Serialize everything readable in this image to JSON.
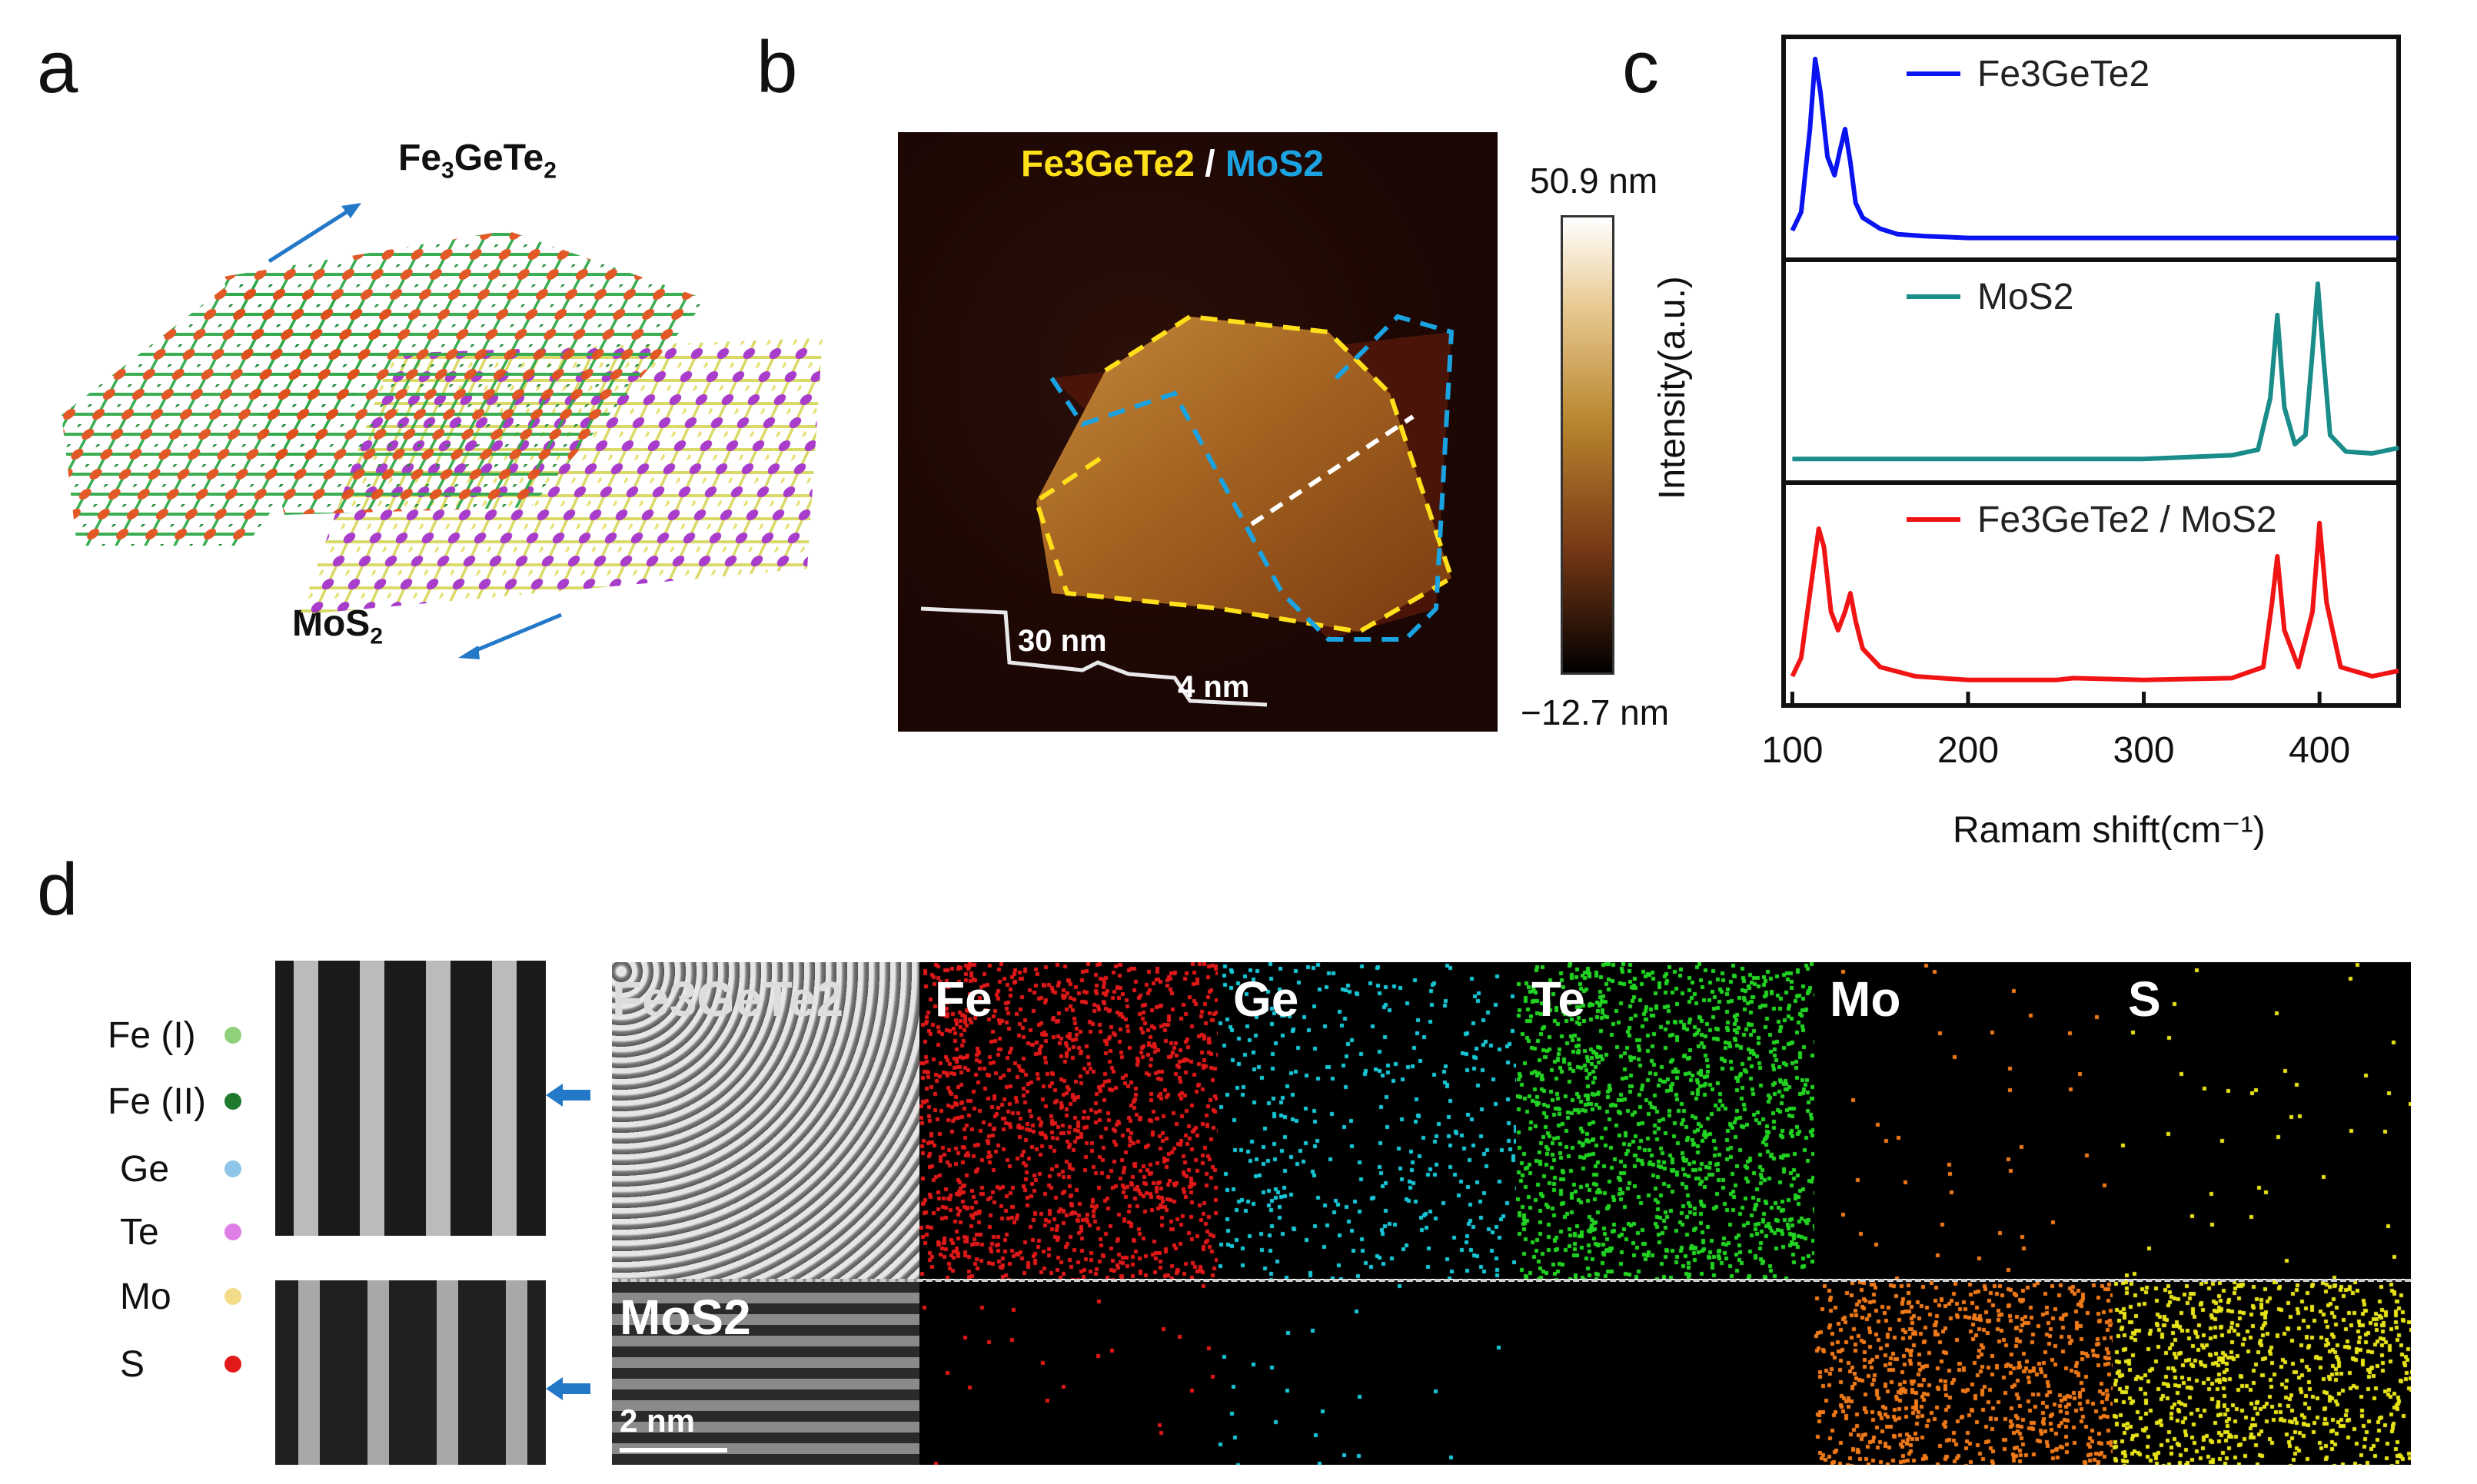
{
  "panels": {
    "a": {
      "letter": "a",
      "top_layer": "Fe",
      "top_layer_sub": "3",
      "top_layer_mid": "GeTe",
      "top_layer_sub2": "2",
      "bottom_layer": "MoS",
      "bottom_layer_sub": "2"
    },
    "b": {
      "letter": "b",
      "title_fgt": "Fe3GeTe2",
      "title_sep": " / ",
      "title_mos": "MoS2",
      "scale_max": "50.9 nm",
      "scale_min": "−12.7 nm",
      "step_high": "30 nm",
      "step_low": "4 nm",
      "colors": {
        "fgt_outline": "#ffe01a",
        "mos_outline": "#1aa3e0"
      }
    },
    "c": {
      "letter": "c",
      "ylabel": "Intensity(a.u.)",
      "xlabel": "Ramam shift(cm⁻¹)"
    },
    "d": {
      "letter": "d",
      "legend": [
        {
          "label": "Fe (I)",
          "color": "#8fd07a"
        },
        {
          "label": "Fe (II)",
          "color": "#1f7a2e"
        },
        {
          "label": "Ge",
          "color": "#8ec5e8"
        },
        {
          "label": "Te",
          "color": "#e07ee8"
        },
        {
          "label": "Mo",
          "color": "#f2dc8a"
        },
        {
          "label": "S",
          "color": "#e31a1a"
        }
      ],
      "fgt_label": "Fe3GeTe2",
      "mos_label": "MoS2",
      "scalebar": "2 nm",
      "maps": [
        {
          "element": "Fe",
          "color": "#e01818",
          "top_density": "high",
          "bottom_density": "low"
        },
        {
          "element": "Ge",
          "color": "#18c8d8",
          "top_density": "mid",
          "bottom_density": "low"
        },
        {
          "element": "Te",
          "color": "#22d422",
          "top_density": "high",
          "bottom_density": "none"
        },
        {
          "element": "Mo",
          "color": "#f07a18",
          "top_density": "low",
          "bottom_density": "high"
        },
        {
          "element": "S",
          "color": "#e8e418",
          "top_density": "low",
          "bottom_density": "high"
        }
      ]
    }
  },
  "chart_data": [
    {
      "type": "line",
      "title": "Fe3GeTe2",
      "color": "#0a14f0",
      "x": [
        100,
        105,
        110,
        113,
        116,
        120,
        124,
        127,
        130,
        133,
        136,
        140,
        150,
        160,
        175,
        200,
        250,
        300,
        350,
        400,
        445
      ],
      "y": [
        0.05,
        0.15,
        0.6,
        0.98,
        0.8,
        0.45,
        0.35,
        0.48,
        0.6,
        0.42,
        0.2,
        0.12,
        0.06,
        0.03,
        0.02,
        0.01,
        0.01,
        0.01,
        0.01,
        0.01,
        0.01
      ]
    },
    {
      "type": "line",
      "title": "MoS2",
      "color": "#1a8c8a",
      "x": [
        100,
        200,
        300,
        350,
        365,
        372,
        376,
        380,
        386,
        392,
        396,
        399,
        402,
        406,
        415,
        430,
        445
      ],
      "y": [
        0.02,
        0.02,
        0.02,
        0.04,
        0.07,
        0.35,
        0.8,
        0.3,
        0.1,
        0.15,
        0.6,
        0.97,
        0.6,
        0.15,
        0.06,
        0.05,
        0.08
      ]
    },
    {
      "type": "line",
      "title": "Fe3GeTe2 / MoS2",
      "color": "#f01414",
      "x": [
        100,
        105,
        110,
        115,
        118,
        122,
        126,
        130,
        133,
        136,
        140,
        150,
        170,
        200,
        250,
        260,
        300,
        350,
        368,
        373,
        376,
        380,
        388,
        396,
        400,
        404,
        412,
        430,
        445
      ],
      "y": [
        0.05,
        0.15,
        0.5,
        0.85,
        0.75,
        0.4,
        0.3,
        0.4,
        0.5,
        0.35,
        0.2,
        0.1,
        0.05,
        0.03,
        0.03,
        0.04,
        0.03,
        0.04,
        0.1,
        0.45,
        0.7,
        0.3,
        0.1,
        0.4,
        0.88,
        0.45,
        0.1,
        0.05,
        0.08
      ]
    }
  ],
  "chart_axes": {
    "x_ticks": [
      "100",
      "200",
      "300",
      "400"
    ],
    "xlim": [
      95,
      445
    ]
  }
}
